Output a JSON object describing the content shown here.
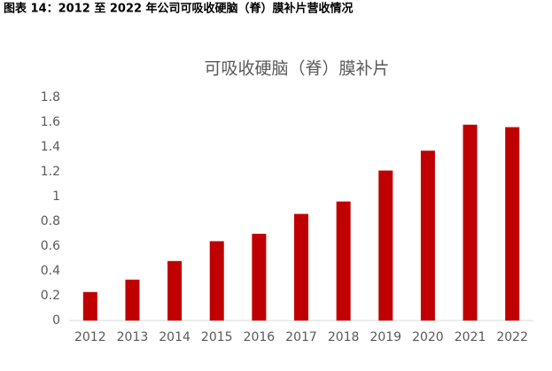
{
  "caption": "图表 14：2012 至 2022 年公司可吸收硬脑（脊）膜补片营收情况",
  "chart_data": {
    "type": "bar",
    "title": "可吸收硬脑（脊）膜补片",
    "categories": [
      "2012",
      "2013",
      "2014",
      "2015",
      "2016",
      "2017",
      "2018",
      "2019",
      "2020",
      "2021",
      "2022"
    ],
    "values": [
      0.23,
      0.33,
      0.48,
      0.64,
      0.7,
      0.86,
      0.96,
      1.21,
      1.37,
      1.58,
      1.56
    ],
    "color": "#c00000",
    "ylim": [
      0,
      1.8
    ],
    "yticks": [
      0,
      0.2,
      0.4,
      0.6,
      0.8,
      1,
      1.2,
      1.4,
      1.6,
      1.8
    ],
    "grid": false
  }
}
